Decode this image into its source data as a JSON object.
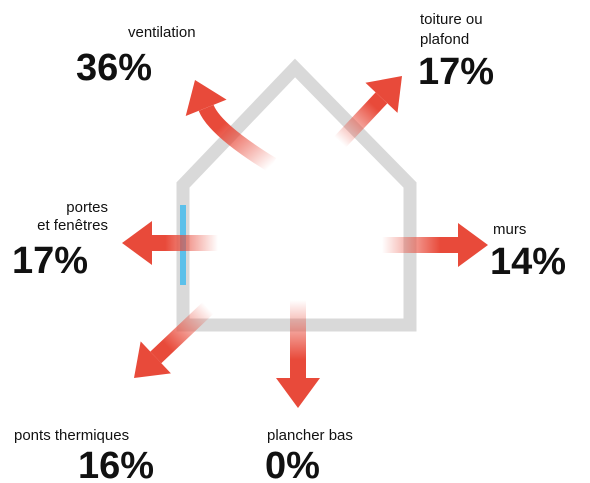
{
  "items": [
    {
      "label": [
        "ventilation"
      ],
      "percent": "36%"
    },
    {
      "label": [
        "toiture ou",
        "plafond"
      ],
      "percent": "17%"
    },
    {
      "label": [
        "portes",
        "et fenêtres"
      ],
      "percent": "17%"
    },
    {
      "label": [
        "murs"
      ],
      "percent": "14%"
    },
    {
      "label": [
        "ponts thermiques"
      ],
      "percent": "16%"
    },
    {
      "label": [
        "plancher bas"
      ],
      "percent": "0%"
    }
  ]
}
